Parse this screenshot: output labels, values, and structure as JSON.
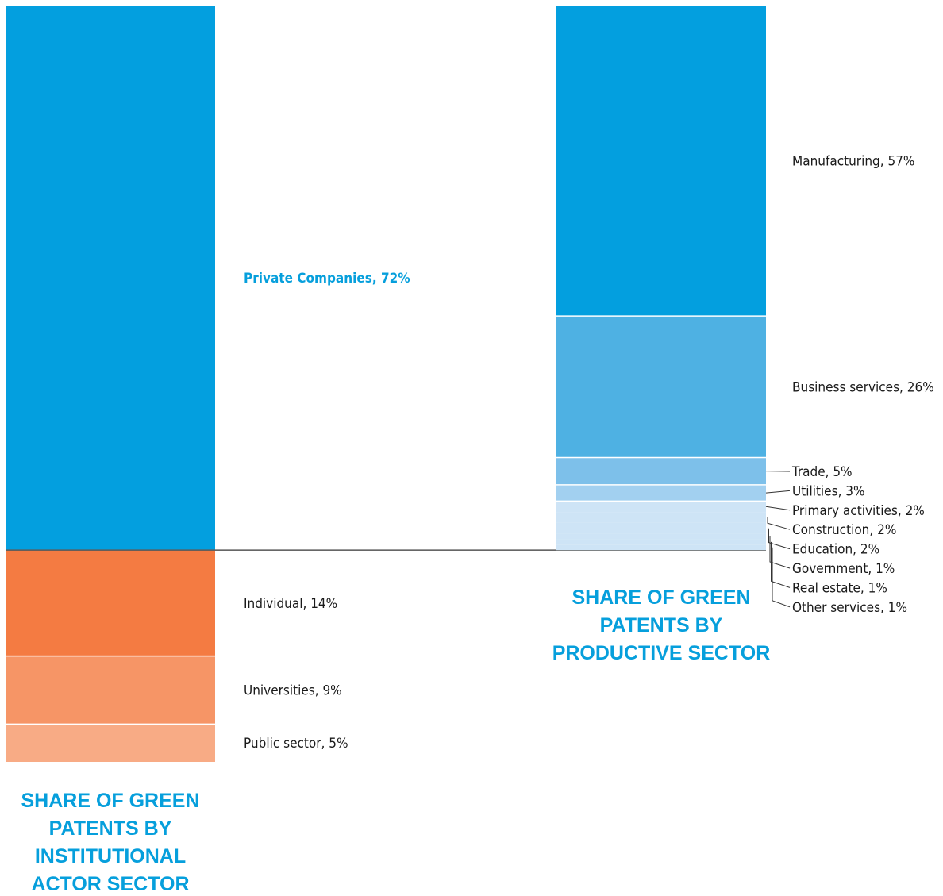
{
  "colors": {
    "private": "#039fdf",
    "highlight_text": "#069fdc",
    "individual": "#f47b42",
    "universities": "#f69566",
    "public_sector": "#f8ab85",
    "manufacturing": "#039fdf",
    "business_services": "#4eb1e3",
    "trade": "#7dc0ea",
    "utilities": "#a2d0f0",
    "small_sectors": "#cee4f6"
  },
  "chart_data": [
    {
      "type": "bar",
      "stacked": true,
      "unit": "%",
      "title": "SHARE OF GREEN PATENTS BY INSTITUTIONAL ACTOR SECTOR",
      "title_lines": [
        "SHARE OF GREEN",
        "PATENTS BY",
        "INSTITUTIONAL",
        "ACTOR SECTOR"
      ],
      "segments": [
        {
          "name": "Private Companies",
          "value": 72,
          "label": "Private Companies, 72%",
          "highlight": true
        },
        {
          "name": "Individual",
          "value": 14,
          "label": "Individual, 14%"
        },
        {
          "name": "Universities",
          "value": 9,
          "label": "Universities, 9%"
        },
        {
          "name": "Public sector",
          "value": 5,
          "label": "Public sector, 5%"
        }
      ]
    },
    {
      "type": "bar",
      "stacked": true,
      "unit": "%",
      "title": "SHARE OF GREEN PATENTS BY PRODUCTIVE SECTOR",
      "title_lines": [
        "SHARE OF GREEN",
        "PATENTS BY",
        "PRODUCTIVE SECTOR"
      ],
      "breakdown_of": "Private Companies",
      "segments": [
        {
          "name": "Manufacturing",
          "value": 57,
          "label": "Manufacturing, 57%"
        },
        {
          "name": "Business services",
          "value": 26,
          "label": "Business services, 26%"
        },
        {
          "name": "Trade",
          "value": 5,
          "label": "Trade, 5%"
        },
        {
          "name": "Utilities",
          "value": 3,
          "label": "Utilities, 3%"
        },
        {
          "name": "Primary activities",
          "value": 2,
          "label": "Primary activities, 2%"
        },
        {
          "name": "Construction",
          "value": 2,
          "label": "Construction, 2%"
        },
        {
          "name": "Education",
          "value": 2,
          "label": "Education, 2%"
        },
        {
          "name": "Government",
          "value": 1,
          "label": "Government, 1%"
        },
        {
          "name": "Real estate",
          "value": 1,
          "label": "Real estate, 1%"
        },
        {
          "name": "Other services",
          "value": 1,
          "label": "Other services, 1%"
        }
      ]
    }
  ]
}
